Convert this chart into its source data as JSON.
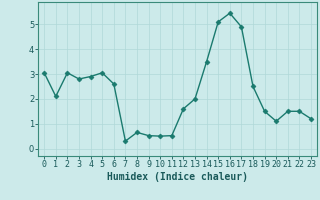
{
  "x": [
    0,
    1,
    2,
    3,
    4,
    5,
    6,
    7,
    8,
    9,
    10,
    11,
    12,
    13,
    14,
    15,
    16,
    17,
    18,
    19,
    20,
    21,
    22,
    23
  ],
  "y": [
    3.05,
    2.1,
    3.05,
    2.8,
    2.9,
    3.05,
    2.6,
    0.3,
    0.65,
    0.52,
    0.5,
    0.52,
    1.6,
    2.0,
    3.5,
    5.1,
    5.45,
    4.9,
    2.5,
    1.5,
    1.1,
    1.5,
    1.5,
    1.2
  ],
  "line_color": "#1a7a6e",
  "marker_color": "#1a7a6e",
  "bg_color": "#cceaea",
  "grid_color": "#b0d8d8",
  "xlabel": "Humidex (Indice chaleur)",
  "xlim": [
    -0.5,
    23.5
  ],
  "ylim": [
    -0.3,
    5.9
  ],
  "yticks": [
    0,
    1,
    2,
    3,
    4,
    5
  ],
  "xtick_labels": [
    "0",
    "1",
    "2",
    "3",
    "4",
    "5",
    "6",
    "7",
    "8",
    "9",
    "10",
    "11",
    "12",
    "13",
    "14",
    "15",
    "16",
    "17",
    "18",
    "19",
    "20",
    "21",
    "22",
    "23"
  ],
  "xlabel_fontsize": 7,
  "tick_fontsize": 6,
  "line_width": 1.0,
  "marker_size": 2.5
}
